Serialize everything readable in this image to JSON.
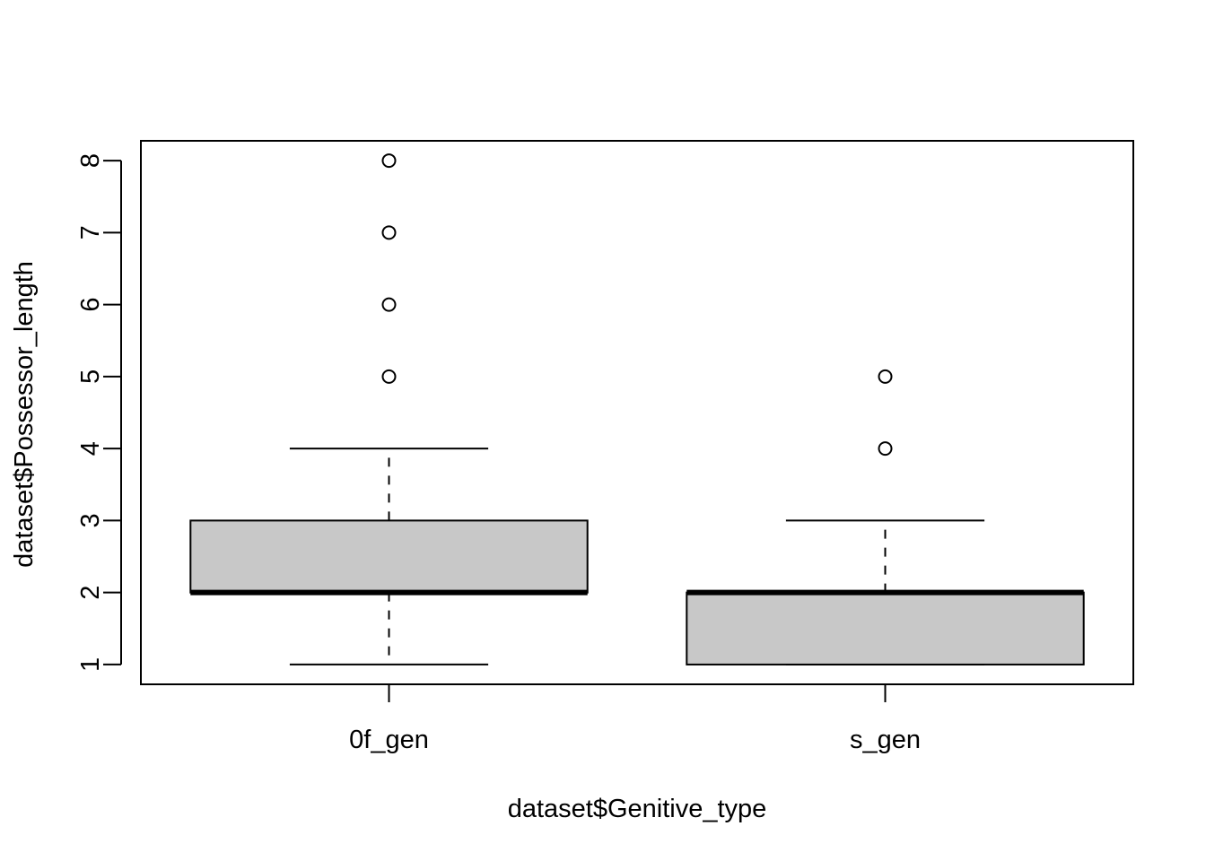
{
  "chart_data": {
    "type": "boxplot",
    "title": "",
    "xlabel": "dataset$Genitive_type",
    "ylabel": "dataset$Possessor_length",
    "ylim": [
      0.725,
      8.275
    ],
    "yticks": [
      1,
      2,
      3,
      4,
      5,
      6,
      7,
      8
    ],
    "grid": false,
    "box_fill": "#c8c8c8",
    "line_color": "#000000",
    "categories": [
      "0f_gen",
      "s_gen"
    ],
    "boxes": [
      {
        "category": "0f_gen",
        "whisker_low": 1,
        "q1": 2,
        "median": 2,
        "q3": 3,
        "whisker_high": 4,
        "outliers": [
          5,
          6,
          7,
          8
        ]
      },
      {
        "category": "s_gen",
        "whisker_low": 1,
        "q1": 1,
        "median": 2,
        "q3": 2,
        "whisker_high": 3,
        "outliers": [
          4,
          5
        ]
      }
    ]
  }
}
